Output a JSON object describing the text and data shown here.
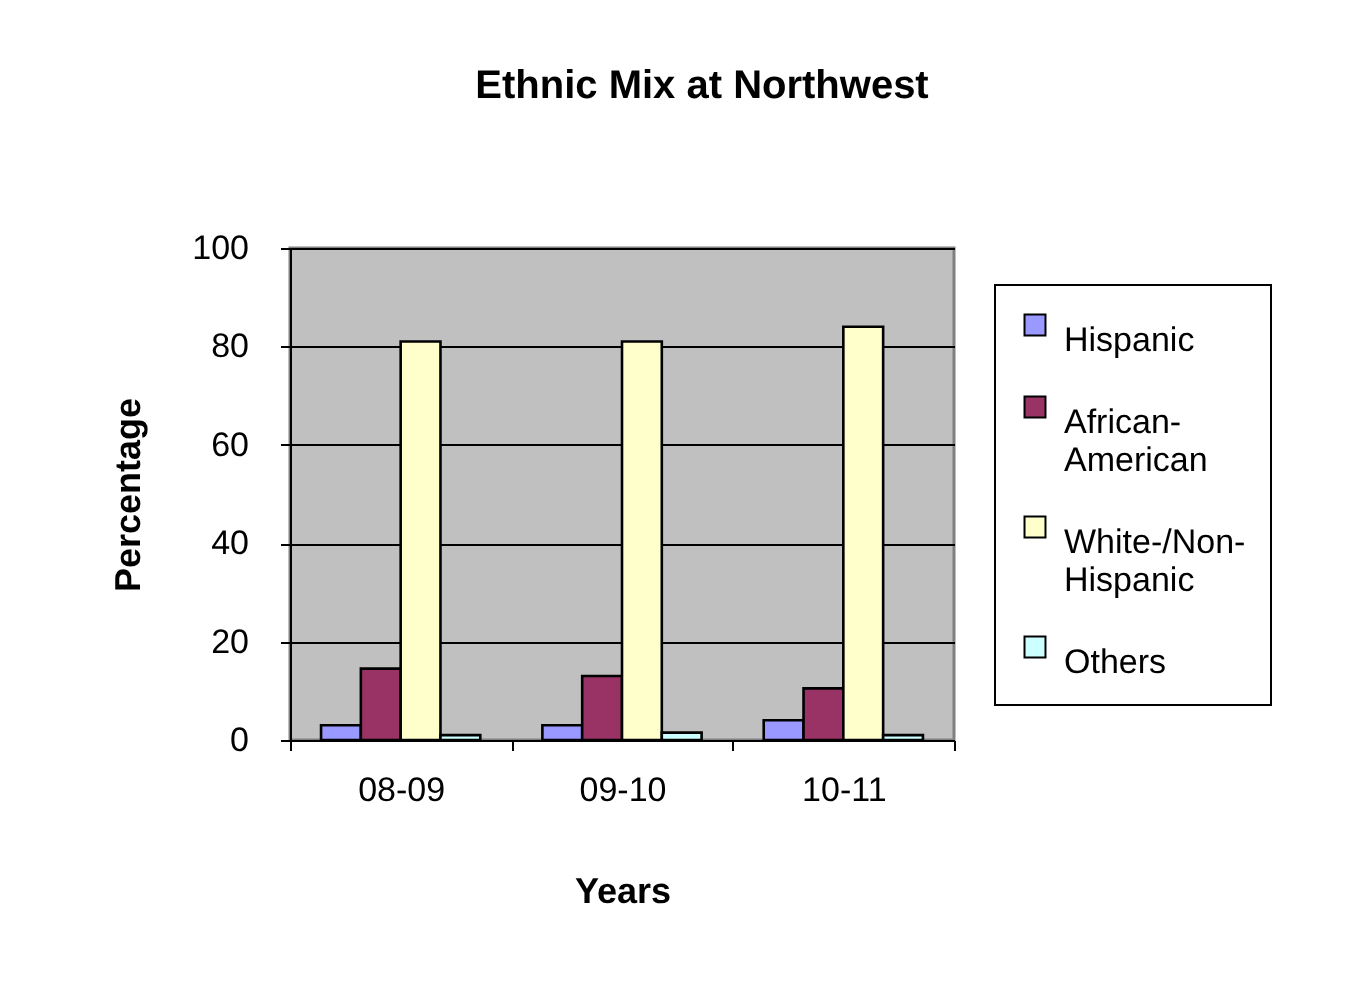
{
  "chart_data": {
    "type": "bar",
    "title": "Ethnic Mix at Northwest",
    "xlabel": "Years",
    "ylabel": "Percentage",
    "categories": [
      "08-09",
      "09-10",
      "10-11"
    ],
    "series": [
      {
        "name": "Hispanic",
        "color": "#9999ff",
        "values": [
          3,
          3,
          4
        ]
      },
      {
        "name": "African-American",
        "color": "#993366",
        "values": [
          14.5,
          13,
          10.5
        ]
      },
      {
        "name": "White-/Non-Hispanic",
        "color": "#ffffcc",
        "values": [
          81,
          81,
          84
        ]
      },
      {
        "name": "Others",
        "color": "#ccffff",
        "values": [
          1,
          1.5,
          1
        ]
      }
    ],
    "ylim": [
      0,
      100
    ],
    "yticks": [
      0,
      20,
      40,
      60,
      80,
      100
    ],
    "grid": "y",
    "legend": "right"
  }
}
